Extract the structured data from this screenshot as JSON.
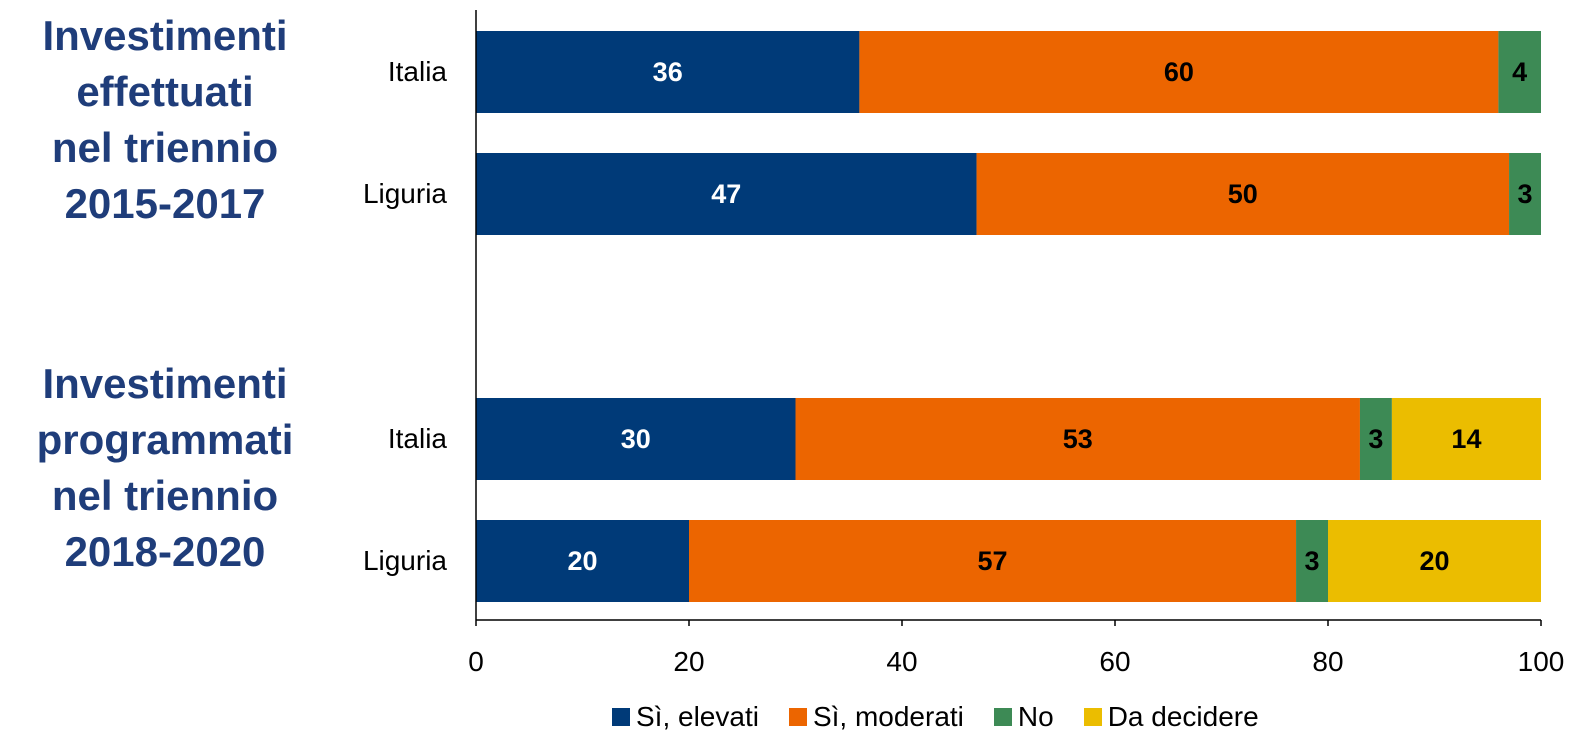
{
  "titles": {
    "group1": [
      "Investimenti",
      "effettuati",
      "nel triennio",
      "2015-2017"
    ],
    "group2": [
      "Investimenti",
      "programmati",
      "nel triennio",
      "2018-2020"
    ]
  },
  "chart_data": {
    "type": "bar",
    "orientation": "horizontal",
    "stacked": true,
    "categories": [
      "Italia",
      "Liguria",
      "Italia",
      "Liguria"
    ],
    "series": [
      {
        "name": "Sì, elevati",
        "color": "#003a78",
        "label_color": "#ffffff",
        "values": [
          36,
          47,
          30,
          20
        ]
      },
      {
        "name": "Sì, moderati",
        "color": "#ec6500",
        "label_color": "#000000",
        "values": [
          60,
          50,
          53,
          57
        ]
      },
      {
        "name": "No",
        "color": "#3d8a55",
        "label_color": "#000000",
        "values": [
          4,
          3,
          3,
          3
        ]
      },
      {
        "name": "Da decidere",
        "color": "#ebbd00",
        "label_color": "#000000",
        "values": [
          0,
          0,
          14,
          20
        ]
      }
    ],
    "xlim": [
      0,
      100
    ],
    "xticks": [
      0,
      20,
      40,
      60,
      80,
      100
    ],
    "grid": false,
    "legend": "bottom"
  }
}
